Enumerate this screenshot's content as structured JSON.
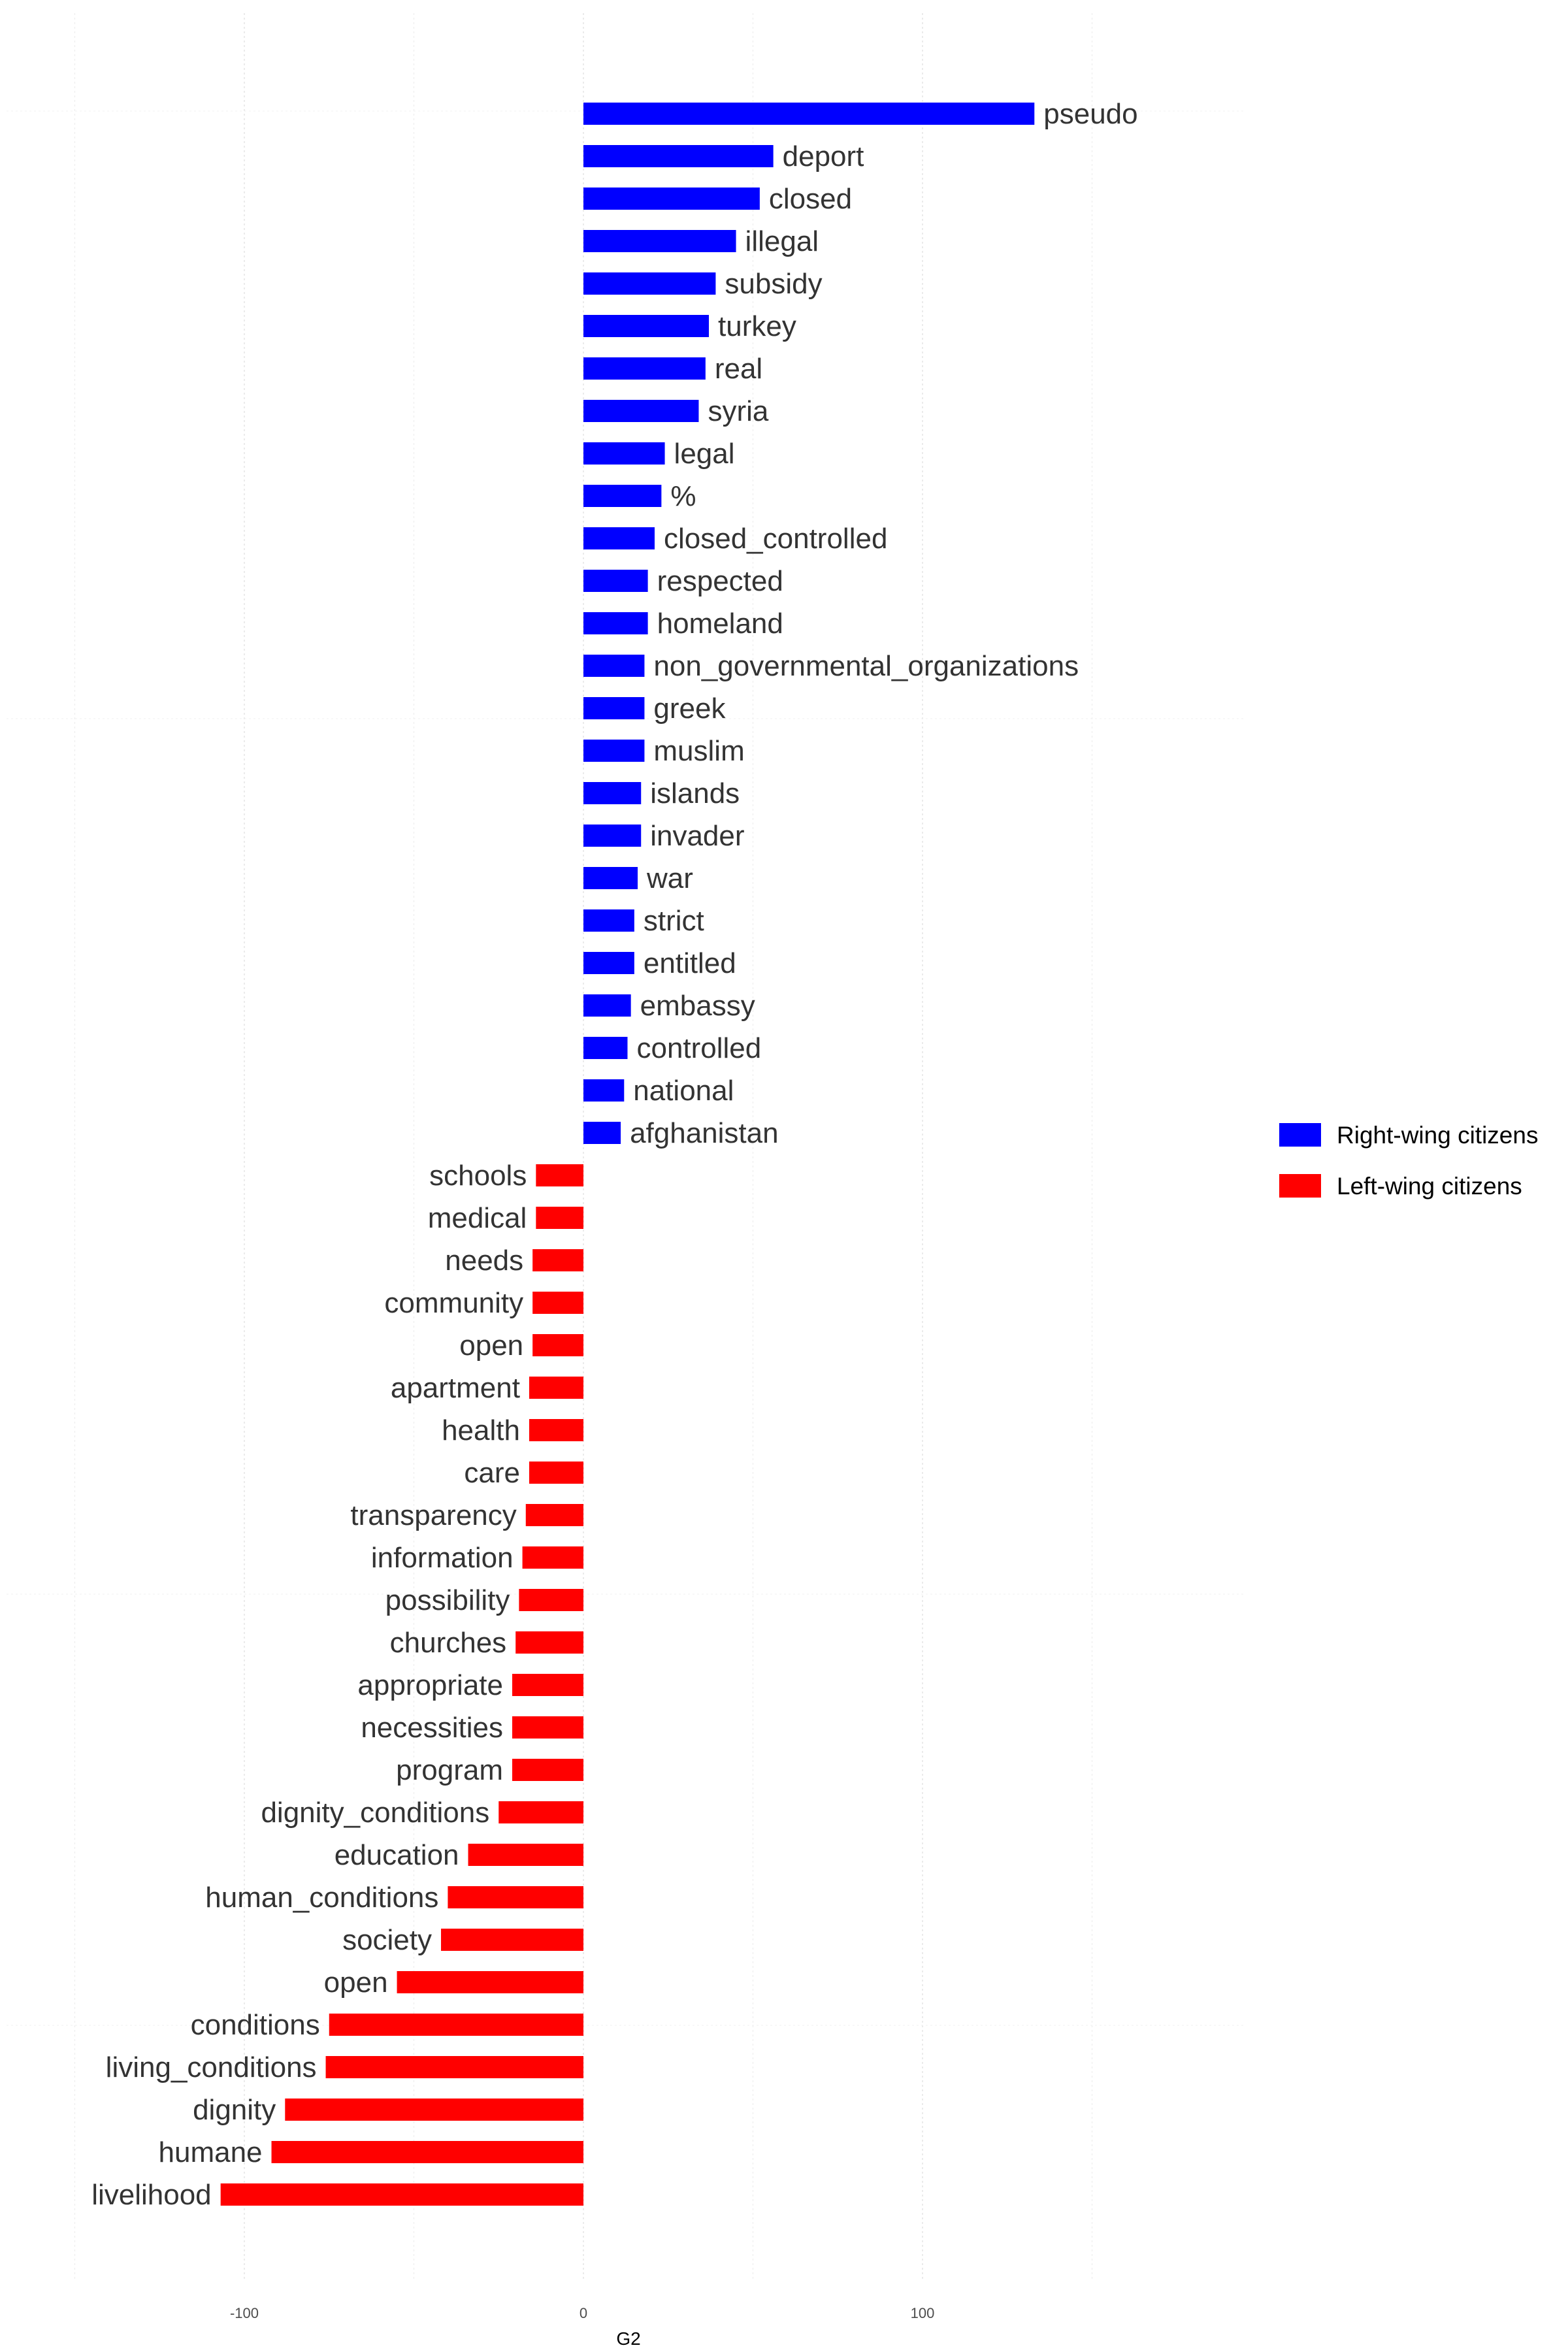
{
  "chart_data": {
    "type": "bar",
    "orientation": "horizontal",
    "title": "",
    "xlabel": "G2",
    "ylabel": "",
    "xlim": [
      -150,
      195
    ],
    "x_ticks": [
      -100,
      0,
      100
    ],
    "grid": true,
    "legend_position": "right",
    "series": [
      {
        "name": "Right-wing citizens",
        "color": "#0000ff"
      },
      {
        "name": "Left-wing citizens",
        "color": "#ff0000"
      }
    ],
    "bars": [
      {
        "label": "pseudo",
        "value": 133,
        "group": 0
      },
      {
        "label": "deport",
        "value": 56,
        "group": 0
      },
      {
        "label": "closed",
        "value": 52,
        "group": 0
      },
      {
        "label": "illegal",
        "value": 45,
        "group": 0
      },
      {
        "label": "subsidy",
        "value": 39,
        "group": 0
      },
      {
        "label": "turkey",
        "value": 37,
        "group": 0
      },
      {
        "label": "real",
        "value": 36,
        "group": 0
      },
      {
        "label": "syria",
        "value": 34,
        "group": 0
      },
      {
        "label": "legal",
        "value": 24,
        "group": 0
      },
      {
        "label": "%",
        "value": 23,
        "group": 0
      },
      {
        "label": "closed_controlled",
        "value": 21,
        "group": 0
      },
      {
        "label": "respected",
        "value": 19,
        "group": 0
      },
      {
        "label": "homeland",
        "value": 19,
        "group": 0
      },
      {
        "label": "non_governmental_organizations",
        "value": 18,
        "group": 0
      },
      {
        "label": "greek",
        "value": 18,
        "group": 0
      },
      {
        "label": "muslim",
        "value": 18,
        "group": 0
      },
      {
        "label": "islands",
        "value": 17,
        "group": 0
      },
      {
        "label": "invader",
        "value": 17,
        "group": 0
      },
      {
        "label": "war",
        "value": 16,
        "group": 0
      },
      {
        "label": "strict",
        "value": 15,
        "group": 0
      },
      {
        "label": "entitled",
        "value": 15,
        "group": 0
      },
      {
        "label": "embassy",
        "value": 14,
        "group": 0
      },
      {
        "label": "controlled",
        "value": 13,
        "group": 0
      },
      {
        "label": "national",
        "value": 12,
        "group": 0
      },
      {
        "label": "afghanistan",
        "value": 11,
        "group": 0
      },
      {
        "label": "schools",
        "value": -14,
        "group": 1
      },
      {
        "label": "medical",
        "value": -14,
        "group": 1
      },
      {
        "label": "needs",
        "value": -15,
        "group": 1
      },
      {
        "label": "community",
        "value": -15,
        "group": 1
      },
      {
        "label": "open",
        "value": -15,
        "group": 1
      },
      {
        "label": "apartment",
        "value": -16,
        "group": 1
      },
      {
        "label": "health",
        "value": -16,
        "group": 1
      },
      {
        "label": "care",
        "value": -16,
        "group": 1
      },
      {
        "label": "transparency",
        "value": -17,
        "group": 1
      },
      {
        "label": "information",
        "value": -18,
        "group": 1
      },
      {
        "label": "possibility",
        "value": -19,
        "group": 1
      },
      {
        "label": "churches",
        "value": -20,
        "group": 1
      },
      {
        "label": "appropriate",
        "value": -21,
        "group": 1
      },
      {
        "label": "necessities",
        "value": -21,
        "group": 1
      },
      {
        "label": "program",
        "value": -21,
        "group": 1
      },
      {
        "label": "dignity_conditions",
        "value": -25,
        "group": 1
      },
      {
        "label": "education",
        "value": -34,
        "group": 1
      },
      {
        "label": "human_conditions",
        "value": -40,
        "group": 1
      },
      {
        "label": "society",
        "value": -42,
        "group": 1
      },
      {
        "label": "open",
        "value": -55,
        "group": 1
      },
      {
        "label": "conditions",
        "value": -75,
        "group": 1
      },
      {
        "label": "living_conditions",
        "value": -76,
        "group": 1
      },
      {
        "label": "dignity",
        "value": -88,
        "group": 1
      },
      {
        "label": "humane",
        "value": -92,
        "group": 1
      },
      {
        "label": "livelihood",
        "value": -107,
        "group": 1
      }
    ]
  }
}
